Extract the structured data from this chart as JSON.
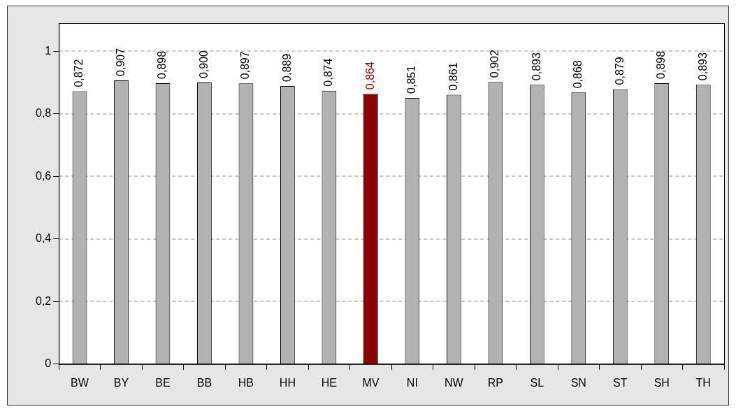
{
  "chart_data": {
    "type": "bar",
    "categories": [
      "BW",
      "BY",
      "BE",
      "BB",
      "HB",
      "HH",
      "HE",
      "MV",
      "NI",
      "NW",
      "RP",
      "SL",
      "SN",
      "ST",
      "SH",
      "TH"
    ],
    "values": [
      0.872,
      0.907,
      0.898,
      0.9,
      0.897,
      0.889,
      0.874,
      0.864,
      0.851,
      0.861,
      0.902,
      0.893,
      0.868,
      0.879,
      0.898,
      0.893
    ],
    "value_labels": [
      "0,872",
      "0,907",
      "0,898",
      "0,900",
      "0,897",
      "0,889",
      "0,874",
      "0,864",
      "0,851",
      "0,861",
      "0,902",
      "0,893",
      "0,868",
      "0,879",
      "0,898",
      "0,893"
    ],
    "colors": [
      "#b2b2b2",
      "#b2b2b2",
      "#b2b2b2",
      "#b2b2b2",
      "#b2b2b2",
      "#b2b2b2",
      "#b2b2b2",
      "#8b0000",
      "#b2b2b2",
      "#b2b2b2",
      "#b2b2b2",
      "#b2b2b2",
      "#b2b2b2",
      "#b2b2b2",
      "#b2b2b2",
      "#b2b2b2"
    ],
    "ylim": [
      0,
      1.09
    ],
    "yticks": [
      {
        "value": 0,
        "label": "0"
      },
      {
        "value": 0.2,
        "label": "0,2"
      },
      {
        "value": 0.4,
        "label": "0,4"
      },
      {
        "value": 0.6,
        "label": "0,6"
      },
      {
        "value": 0.8,
        "label": "0,8"
      },
      {
        "value": 1,
        "label": "1"
      }
    ],
    "grid": "y",
    "legend": false
  }
}
